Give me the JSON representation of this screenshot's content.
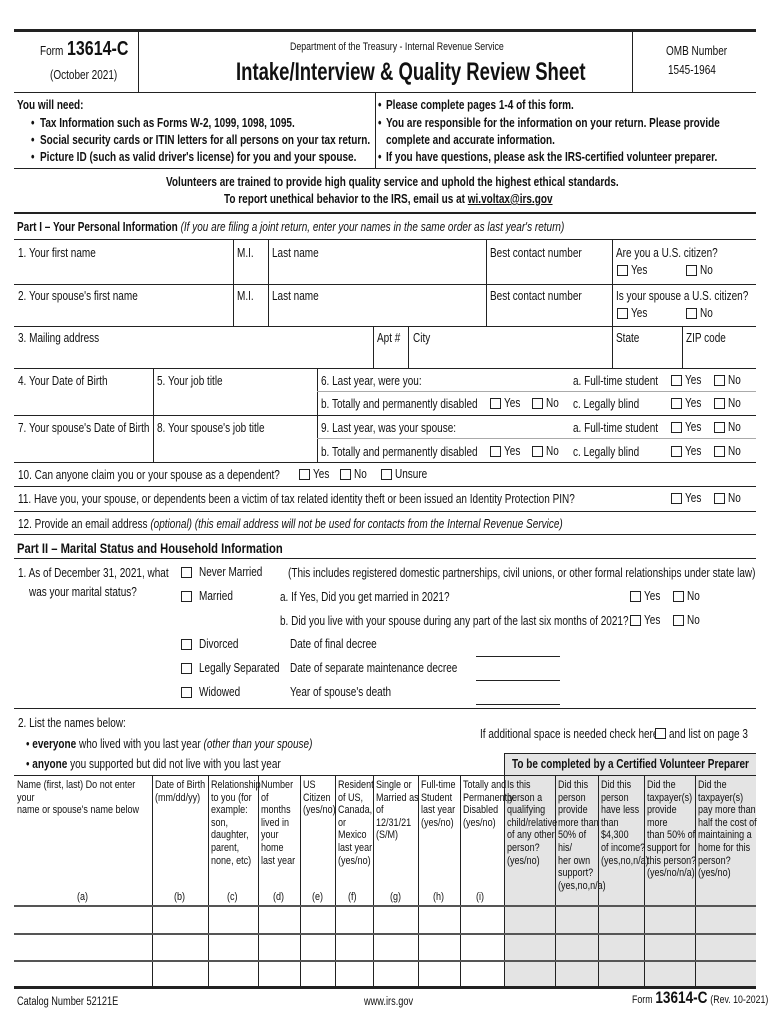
{
  "header": {
    "form_prefix": "Form",
    "form_number": "13614-C",
    "form_date": "(October 2021)",
    "department": "Department of the Treasury - Internal Revenue Service",
    "title": "Intake/Interview & Quality Review Sheet",
    "omb_label": "OMB Number",
    "omb_number": "1545-1964"
  },
  "needs": {
    "heading": "You will need:",
    "items": [
      "Tax Information such as Forms W-2, 1099, 1098, 1095.",
      "Social security cards or ITIN letters for all persons on your tax return.",
      "Picture ID (such as valid driver's license) for you and your spouse."
    ],
    "notes": [
      "Please complete pages 1-4 of this form.",
      "You are responsible for the information on your return. Please provide",
      "complete and accurate information.",
      "If you have questions, please ask the IRS-certified volunteer preparer."
    ]
  },
  "ethics": {
    "line1": "Volunteers are trained to provide high quality service and uphold the highest ethical standards.",
    "line2_prefix": "To report unethical behavior to the IRS, email us at ",
    "email": "wi.voltax@irs.gov"
  },
  "part1": {
    "heading": "Part I – Your Personal Information",
    "subheading": "(If you are filing a joint return, enter your names in the same order as last year's return)",
    "first_name": "1. Your first name",
    "mi": "M.I.",
    "last_name": "Last name",
    "contact": "Best contact number",
    "citizen": "Are you a U.S. citizen?",
    "spouse_first": "2. Your spouse's first name",
    "spouse_citizen": "Is your spouse a U.S. citizen?",
    "mailing": "3. Mailing address",
    "apt": "Apt #",
    "city": "City",
    "state": "State",
    "zip": "ZIP code",
    "dob": "4. Your Date of Birth",
    "job": "5. Your job title",
    "last_year": "6. Last year, were you:",
    "fulltime": "a. Full-time student",
    "disabled": "b. Totally and permanently disabled",
    "blind": "c. Legally blind",
    "spouse_dob": "7. Your spouse's Date of Birth",
    "spouse_job": "8. Your spouse's job title",
    "spouse_last_year": "9. Last year, was your spouse:",
    "q10": "10. Can anyone claim you or your spouse as a dependent?",
    "unsure": "Unsure",
    "q11": "11. Have you, your spouse, or dependents been a victim of tax related identity theft or been issued an Identity Protection PIN?",
    "q12": "12. Provide an email address",
    "q12_note": "(optional) (this email address will not be used for contacts from the Internal Revenue Service)",
    "yes": "Yes",
    "no": "No"
  },
  "part2": {
    "heading": "Part II – Marital Status and Household Information",
    "q1a": "1. As of December 31, 2021, what",
    "q1b": "was your marital status?",
    "never": "Never Married",
    "married": "Married",
    "divorced": "Divorced",
    "separated": "Legally Separated",
    "widowed": "Widowed",
    "includes": "(This includes registered domestic partnerships, civil unions, or other formal relationships under state law)",
    "qa": "a. If Yes, Did you get married in 2021?",
    "qb": "b. Did you live with your spouse during any part of the last six months of 2021?",
    "decree": "Date of final decree",
    "maint": "Date of separate maintenance decree",
    "death": "Year of spouse's death",
    "q2": "2. List the names below:",
    "everyone_b": "everyone",
    "everyone": " who lived with you last year ",
    "everyone_i": "(other than your spouse)",
    "anyone_b": "anyone",
    "anyone": " you supported but did not live with you last year",
    "additional_a": "If additional space is needed check here",
    "additional_b": "and list on page 3",
    "preparer": "To be completed by a Certified Volunteer Preparer",
    "columns": [
      "Name (first, last) Do not enter your\nname or spouse's name below",
      "Date of Birth\n(mm/dd/yy)",
      "Relationship\nto you (for\nexample:\nson,\ndaughter,\nparent,\nnone, etc)",
      "Number of\nmonths\nlived in\nyour home\nlast year",
      "US\nCitizen\n(yes/no)",
      "Resident\nof US,\nCanada,\nor Mexico\nlast year\n(yes/no)",
      "Single or\nMarried as\nof 12/31/21\n(S/M)",
      "Full-time\nStudent\nlast year\n(yes/no)",
      "Totally and\nPermanently\nDisabled\n(yes/no)",
      "Is this\nperson a\nqualifying\nchild/relative\nof any other\nperson?\n(yes/no)",
      "Did this\nperson\nprovide\nmore than\n50% of his/\nher own\nsupport?\n(yes,no,n/a)",
      "Did this\nperson\nhave less\nthan $4,300\nof income?\n(yes,no,n/a)",
      "Did the\ntaxpayer(s)\nprovide more\nthan 50% of\nsupport for\nthis person?\n(yes/no/n/a)",
      "Did the\ntaxpayer(s)\npay more than\nhalf the cost of\nmaintaining a\nhome for this\nperson?\n(yes/no)"
    ],
    "letters": [
      "(a)",
      "(b)",
      "(c)",
      "(d)",
      "(e)",
      "(f)",
      "(g)",
      "(h)",
      "(i)"
    ]
  },
  "footer": {
    "catalog": "Catalog Number 52121E",
    "site": "www.irs.gov",
    "form_prefix": "Form",
    "form_number": "13614-C",
    "rev": "(Rev. 10-2021)"
  },
  "colors": {
    "shade": "#e4e4e4",
    "ink": "#111111"
  }
}
